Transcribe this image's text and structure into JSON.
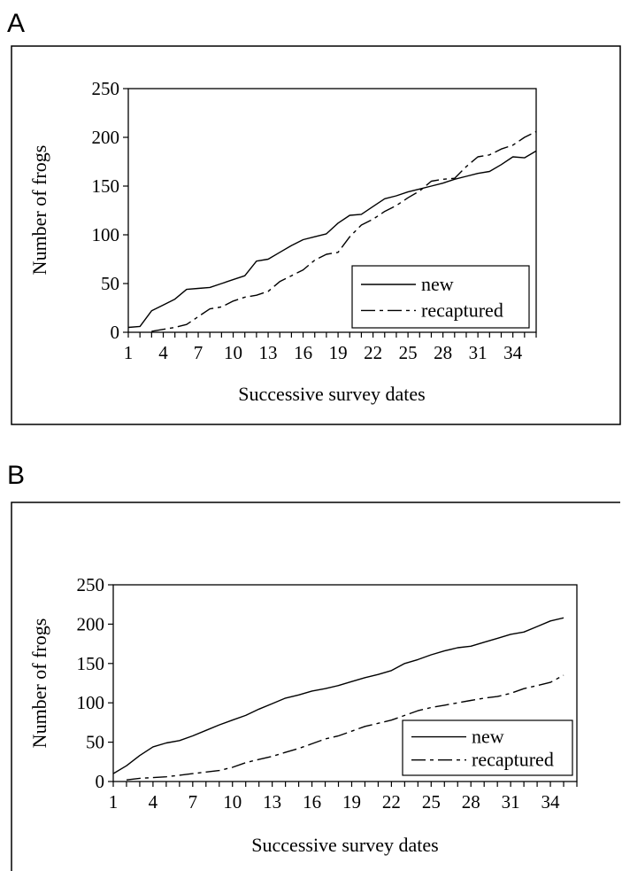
{
  "chart_data": [
    {
      "panel_label": "A",
      "type": "line",
      "xlabel": "Successive survey dates",
      "ylabel": "Number of frogs",
      "xlim": [
        1,
        36
      ],
      "ylim": [
        0,
        250
      ],
      "x_ticks": [
        "1",
        "4",
        "7",
        "10",
        "13",
        "16",
        "19",
        "22",
        "25",
        "28",
        "31",
        "34"
      ],
      "y_ticks": [
        "0",
        "50",
        "100",
        "150",
        "200",
        "250"
      ],
      "grid": false,
      "legend": "bottom-right",
      "series": [
        {
          "name": "new",
          "style": "solid",
          "x": [
            1,
            2,
            3,
            4,
            5,
            6,
            7,
            8,
            9,
            10,
            11,
            12,
            13,
            14,
            15,
            16,
            17,
            18,
            19,
            20,
            21,
            22,
            23,
            24,
            25,
            26,
            27,
            28,
            29,
            30,
            31,
            32,
            33,
            34,
            35,
            36
          ],
          "values": [
            5,
            6,
            22,
            28,
            34,
            44,
            45,
            46,
            50,
            54,
            58,
            73,
            75,
            82,
            89,
            95,
            98,
            101,
            112,
            120,
            121,
            129,
            137,
            140,
            144,
            147,
            150,
            153,
            157,
            160,
            163,
            165,
            172,
            180,
            179,
            186
          ]
        },
        {
          "name": "recaptured",
          "style": "dash-dot",
          "x": [
            3,
            4,
            5,
            6,
            7,
            8,
            9,
            10,
            11,
            12,
            13,
            14,
            15,
            16,
            17,
            18,
            19,
            20,
            21,
            22,
            23,
            24,
            25,
            26,
            27,
            28,
            29,
            30,
            31,
            32,
            33,
            34,
            35,
            36
          ],
          "values": [
            1,
            3,
            5,
            8,
            16,
            24,
            26,
            32,
            36,
            38,
            42,
            52,
            58,
            64,
            74,
            80,
            82,
            98,
            110,
            116,
            124,
            130,
            138,
            145,
            155,
            157,
            158,
            170,
            180,
            182,
            188,
            192,
            200,
            206
          ]
        }
      ]
    },
    {
      "panel_label": "B",
      "type": "line",
      "xlabel": "Successive survey dates",
      "ylabel": "Number of frogs",
      "xlim": [
        1,
        36
      ],
      "ylim": [
        0,
        250
      ],
      "x_ticks": [
        "1",
        "4",
        "7",
        "10",
        "13",
        "16",
        "19",
        "22",
        "25",
        "28",
        "31",
        "34"
      ],
      "y_ticks": [
        "0",
        "50",
        "100",
        "150",
        "200",
        "250"
      ],
      "grid": false,
      "legend": "bottom-right",
      "series": [
        {
          "name": "new",
          "style": "solid",
          "x": [
            1,
            2,
            3,
            4,
            5,
            6,
            7,
            8,
            9,
            10,
            11,
            12,
            13,
            14,
            15,
            16,
            17,
            18,
            19,
            20,
            21,
            22,
            23,
            24,
            25,
            26,
            27,
            28,
            29,
            30,
            31,
            32,
            33,
            34,
            35
          ],
          "values": [
            10,
            20,
            33,
            44,
            49,
            52,
            58,
            65,
            72,
            78,
            84,
            92,
            99,
            106,
            110,
            115,
            118,
            122,
            127,
            132,
            136,
            141,
            150,
            155,
            161,
            166,
            170,
            172,
            177,
            182,
            187,
            190,
            197,
            204,
            208
          ]
        },
        {
          "name": "recaptured",
          "style": "dash-dot",
          "x": [
            2,
            3,
            4,
            5,
            6,
            7,
            8,
            9,
            10,
            11,
            12,
            13,
            14,
            15,
            16,
            17,
            18,
            19,
            20,
            21,
            22,
            23,
            24,
            25,
            26,
            27,
            28,
            29,
            30,
            31,
            32,
            33,
            34,
            35
          ],
          "values": [
            2,
            4,
            5,
            6,
            8,
            10,
            12,
            14,
            18,
            24,
            28,
            32,
            37,
            42,
            48,
            54,
            58,
            64,
            70,
            74,
            78,
            84,
            90,
            94,
            97,
            100,
            103,
            106,
            108,
            112,
            118,
            122,
            126,
            135
          ]
        }
      ]
    }
  ]
}
